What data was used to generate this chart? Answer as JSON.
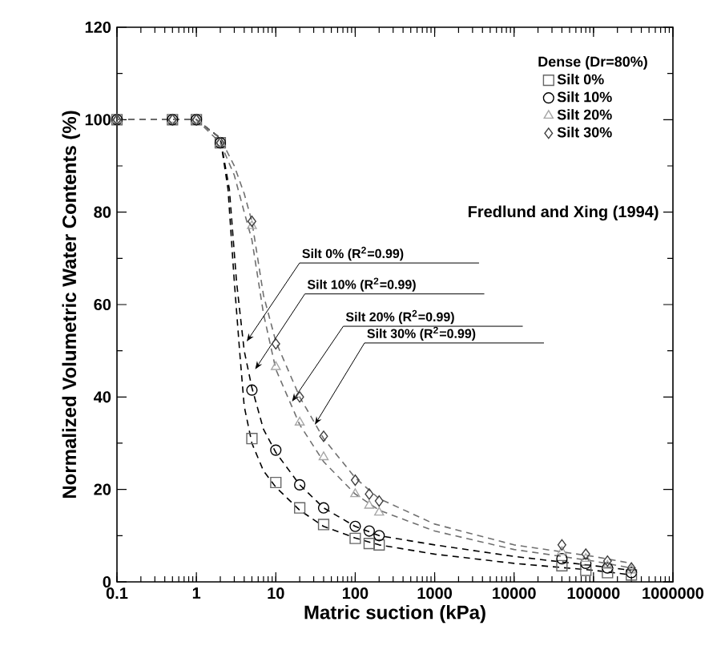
{
  "chart_data": {
    "type": "scatter",
    "xlabel": "Matric suction (kPa)",
    "ylabel": "Normalized Volumetric Water Contents (%)",
    "legend_title": "Dense (Dr=80%)",
    "log": "x",
    "xlim": [
      0.1,
      1000000
    ],
    "ylim": [
      0,
      120
    ],
    "xticks": [
      0.1,
      1,
      10,
      100,
      1000,
      10000,
      100000,
      1000000
    ],
    "yticks": [
      0,
      20,
      40,
      60,
      80,
      100,
      120
    ],
    "legend": "top right",
    "grid": false,
    "annotations": [
      "Fredlund and Xing (1994)",
      {
        "text": "Silt 0% (R$^{2}$=0.99)",
        "x": 4.3,
        "y": 52
      },
      {
        "text": "Silt 10% (R$^{2}$=0.99)",
        "x": 5.5,
        "y": 46
      },
      {
        "text": "Silt 20% (R$^{2}$=0.99)",
        "x": 16,
        "y": 39
      },
      {
        "text": "Silt 30% (R$^{2}$=0.99)",
        "x": 31,
        "y": 34
      }
    ],
    "x": [
      0.1,
      0.5,
      1,
      2,
      5,
      10,
      20,
      40,
      100,
      150,
      200,
      40000,
      80000,
      150000,
      300000
    ],
    "series": [
      {
        "name": "Silt 0%",
        "marker": "square",
        "color": "#666666",
        "values": [
          100,
          100,
          100,
          95,
          31,
          21.5,
          16,
          12.4,
          9.4,
          8.3,
          8,
          3.5,
          2.5,
          2,
          1.5
        ]
      },
      {
        "name": "Silt 10%",
        "marker": "circle",
        "color": "#000000",
        "values": [
          100,
          100,
          100,
          95,
          41.5,
          28.5,
          21,
          16,
          12,
          11,
          10,
          5,
          4,
          3,
          2
        ]
      },
      {
        "name": "Silt 20%",
        "marker": "triangle",
        "color": "#a6a6a6",
        "values": [
          100,
          100,
          100,
          95,
          77,
          46.5,
          34.5,
          27,
          19,
          16.5,
          15,
          6.5,
          5,
          3.5,
          2.5
        ]
      },
      {
        "name": "Silt 30%",
        "marker": "diamond",
        "color": "#404040",
        "values": [
          100,
          100,
          100,
          95,
          78,
          51.5,
          40,
          31.5,
          22,
          19,
          17.5,
          8,
          6,
          4.5,
          3
        ]
      },
      {
        "type": "line",
        "marker": "none",
        "line_style": "dashed",
        "color": "#000000",
        "x": [
          0.1,
          1,
          2,
          2.5,
          3,
          3.5,
          4,
          5,
          7,
          10,
          20,
          40,
          100,
          200,
          1000,
          10000,
          100000,
          300000
        ],
        "values": [
          100,
          100,
          96,
          85,
          65,
          50,
          38,
          30,
          24,
          20.5,
          15.5,
          12,
          9.5,
          8,
          6,
          4,
          2.5,
          1.5
        ]
      },
      {
        "type": "line",
        "marker": "none",
        "line_style": "dashed",
        "color": "#000000",
        "x": [
          0.1,
          1,
          2,
          2.6,
          3.2,
          4,
          5,
          7,
          10,
          20,
          40,
          100,
          200,
          1000,
          10000,
          100000,
          300000
        ],
        "values": [
          100,
          100,
          96,
          85,
          65,
          50,
          42,
          33,
          28,
          21,
          16,
          12,
          10,
          8,
          5.5,
          3.5,
          2.5
        ]
      },
      {
        "type": "line",
        "marker": "none",
        "line_style": "dashed",
        "color": "#707070",
        "x": [
          0.1,
          1,
          2,
          3,
          4,
          5,
          7,
          10,
          20,
          40,
          100,
          200,
          1000,
          10000,
          100000,
          300000
        ],
        "values": [
          100,
          100,
          95,
          88,
          80,
          74,
          58,
          46,
          34,
          26,
          19,
          15.5,
          11,
          7,
          4.5,
          3
        ]
      },
      {
        "type": "line",
        "marker": "none",
        "line_style": "dashed",
        "color": "#707070",
        "x": [
          0.1,
          1,
          2,
          3,
          4,
          5,
          7,
          10,
          20,
          40,
          100,
          200,
          1000,
          10000,
          100000,
          300000
        ],
        "values": [
          100,
          100,
          96,
          90,
          84,
          78,
          62,
          52,
          40,
          31,
          22.5,
          18,
          12.5,
          8,
          5.5,
          4
        ]
      }
    ]
  }
}
